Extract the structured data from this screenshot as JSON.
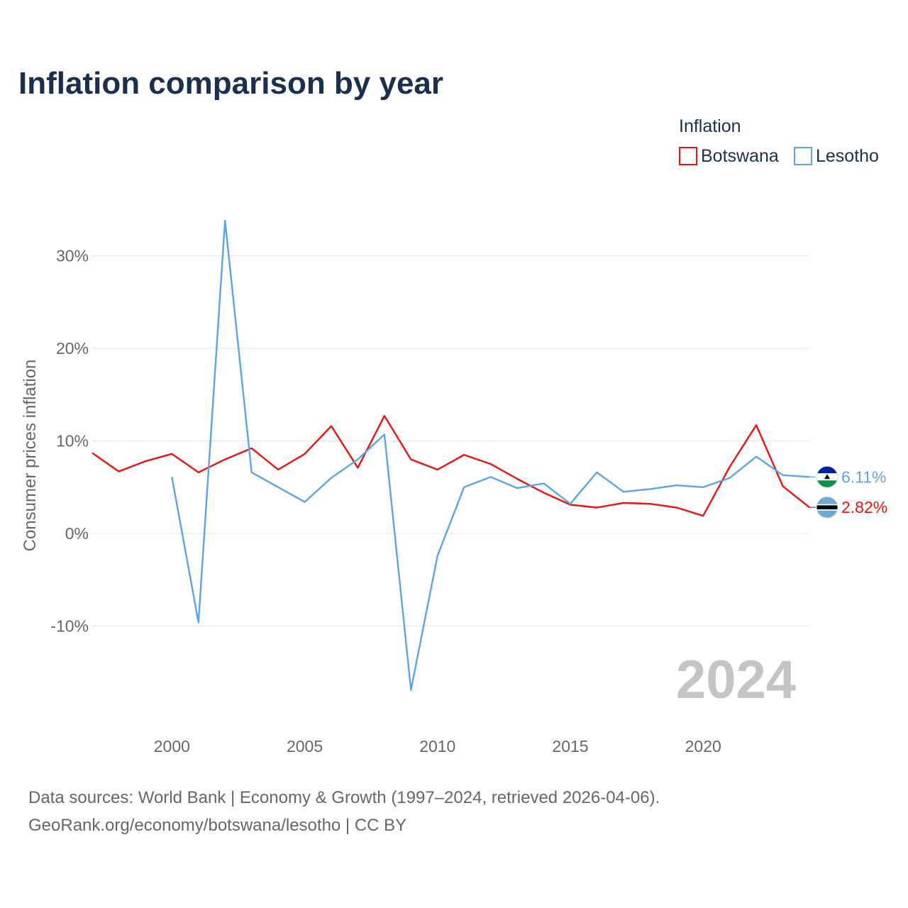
{
  "chart_data": {
    "type": "line",
    "title": "Inflation comparison by year",
    "legend_title": "Inflation",
    "ylabel": "Consumer prices inflation",
    "xlabel": "",
    "xlim": [
      1997,
      2024
    ],
    "ylim": [
      -20,
      35
    ],
    "y_ticks": [
      {
        "value": 30,
        "label": "30%"
      },
      {
        "value": 20,
        "label": "20%"
      },
      {
        "value": 10,
        "label": "10%"
      },
      {
        "value": 0,
        "label": "0%"
      },
      {
        "value": -10,
        "label": "-10%"
      }
    ],
    "x_ticks": [
      {
        "value": 2000,
        "label": "2000"
      },
      {
        "value": 2005,
        "label": "2005"
      },
      {
        "value": 2010,
        "label": "2010"
      },
      {
        "value": 2015,
        "label": "2015"
      },
      {
        "value": 2020,
        "label": "2020"
      }
    ],
    "current_year": "2024",
    "series": [
      {
        "name": "Botswana",
        "color": "#ee1111",
        "end_label": "2.82%",
        "flag": "botswana-flag",
        "x": [
          1997,
          1998,
          1999,
          2000,
          2001,
          2002,
          2003,
          2004,
          2005,
          2006,
          2007,
          2008,
          2009,
          2010,
          2011,
          2012,
          2013,
          2014,
          2015,
          2016,
          2017,
          2018,
          2019,
          2020,
          2021,
          2022,
          2023,
          2024
        ],
        "values": [
          8.7,
          6.7,
          7.8,
          8.6,
          6.6,
          8.0,
          9.2,
          6.9,
          8.6,
          11.6,
          7.1,
          12.7,
          8.0,
          6.9,
          8.5,
          7.5,
          5.9,
          4.4,
          3.1,
          2.8,
          3.3,
          3.2,
          2.8,
          1.9,
          7.2,
          11.7,
          5.1,
          2.82
        ]
      },
      {
        "name": "Lesotho",
        "color": "#5ba4e6",
        "end_label": "6.11%",
        "flag": "lesotho-flag",
        "x": [
          2000,
          2001,
          2002,
          2003,
          2004,
          2005,
          2006,
          2007,
          2008,
          2009,
          2010,
          2011,
          2012,
          2013,
          2014,
          2015,
          2016,
          2017,
          2018,
          2019,
          2020,
          2021,
          2022,
          2023,
          2024
        ],
        "values": [
          6.1,
          -9.6,
          33.8,
          6.6,
          5.0,
          3.4,
          6.0,
          8.0,
          10.7,
          -16.9,
          -2.4,
          5.0,
          6.1,
          4.9,
          5.4,
          3.2,
          6.6,
          4.5,
          4.8,
          5.2,
          5.0,
          6.0,
          8.3,
          6.3,
          6.11
        ]
      }
    ]
  },
  "source": {
    "line1": "Data sources: World Bank | Economy & Growth (1997–2024, retrieved 2026-04-06).",
    "line2": "GeoRank.org/economy/botswana/lesotho | CC BY"
  }
}
